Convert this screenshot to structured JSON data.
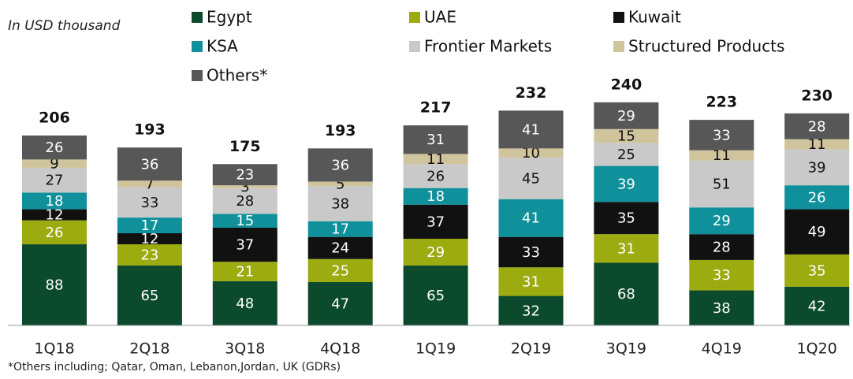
{
  "chart_data": {
    "type": "stacked_bar",
    "subtitle": "In USD thousand",
    "footnote": "*Others including; Qatar, Oman, Lebanon,Jordan, UK (GDRs)",
    "categories": [
      "1Q18",
      "2Q18",
      "3Q18",
      "4Q18",
      "1Q19",
      "2Q19",
      "3Q19",
      "4Q19",
      "1Q20"
    ],
    "series": [
      {
        "name": "Egypt",
        "color": "#0c4a2d",
        "values": [
          88,
          65,
          48,
          47,
          65,
          32,
          68,
          38,
          42
        ]
      },
      {
        "name": "UAE",
        "color": "#9cab0f",
        "values": [
          26,
          23,
          21,
          25,
          29,
          31,
          31,
          33,
          35
        ]
      },
      {
        "name": "Kuwait",
        "color": "#111111",
        "values": [
          12,
          12,
          37,
          24,
          37,
          33,
          35,
          28,
          49
        ]
      },
      {
        "name": "KSA",
        "color": "#0f909a",
        "values": [
          18,
          17,
          15,
          17,
          18,
          41,
          39,
          29,
          26
        ]
      },
      {
        "name": "Frontier Markets",
        "color": "#c9c9c9",
        "values": [
          27,
          33,
          28,
          38,
          26,
          45,
          25,
          51,
          39
        ]
      },
      {
        "name": "Structured Products",
        "color": "#cfc49c",
        "values": [
          9,
          7,
          3,
          5,
          11,
          10,
          15,
          11,
          11
        ]
      },
      {
        "name": "Others*",
        "color": "#575757",
        "values": [
          26,
          36,
          23,
          36,
          31,
          41,
          29,
          33,
          28
        ]
      }
    ],
    "totals": [
      206,
      193,
      175,
      193,
      217,
      232,
      240,
      223,
      230
    ]
  }
}
